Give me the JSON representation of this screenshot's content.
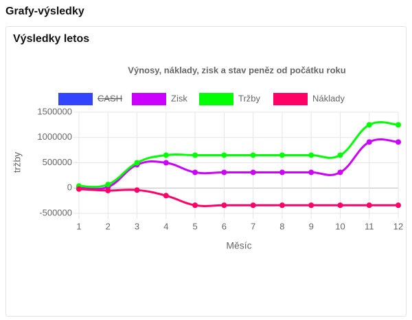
{
  "header": {
    "title": "Grafy-výsledky"
  },
  "card": {
    "title": "Výsledky letos"
  },
  "chart_data": {
    "type": "line",
    "title": "Výnosy, náklady, zisk a stav peněz od počátku roku",
    "xlabel": "Měsíc",
    "ylabel": "tržby",
    "x": [
      1,
      2,
      3,
      4,
      5,
      6,
      7,
      8,
      9,
      10,
      11,
      12
    ],
    "xlim": [
      1,
      12
    ],
    "ylim": [
      -500000,
      1500000
    ],
    "yticks": [
      -500000,
      0,
      500000,
      1000000,
      1500000
    ],
    "grid": true,
    "legend": "top",
    "series": [
      {
        "name": "CASH",
        "color": "#3344ff",
        "hidden": true
      },
      {
        "name": "Zisk",
        "color": "#cc00ff",
        "values": [
          20000,
          20000,
          460000,
          500000,
          310000,
          310000,
          310000,
          310000,
          310000,
          310000,
          910000,
          910000
        ]
      },
      {
        "name": "Tržby",
        "color": "#00ff00",
        "values": [
          40000,
          70000,
          500000,
          650000,
          650000,
          650000,
          650000,
          650000,
          650000,
          650000,
          1250000,
          1250000
        ]
      },
      {
        "name": "Náklady",
        "color": "#ff0066",
        "values": [
          -20000,
          -50000,
          -40000,
          -150000,
          -340000,
          -340000,
          -340000,
          -340000,
          -340000,
          -340000,
          -340000,
          -340000
        ]
      }
    ]
  }
}
